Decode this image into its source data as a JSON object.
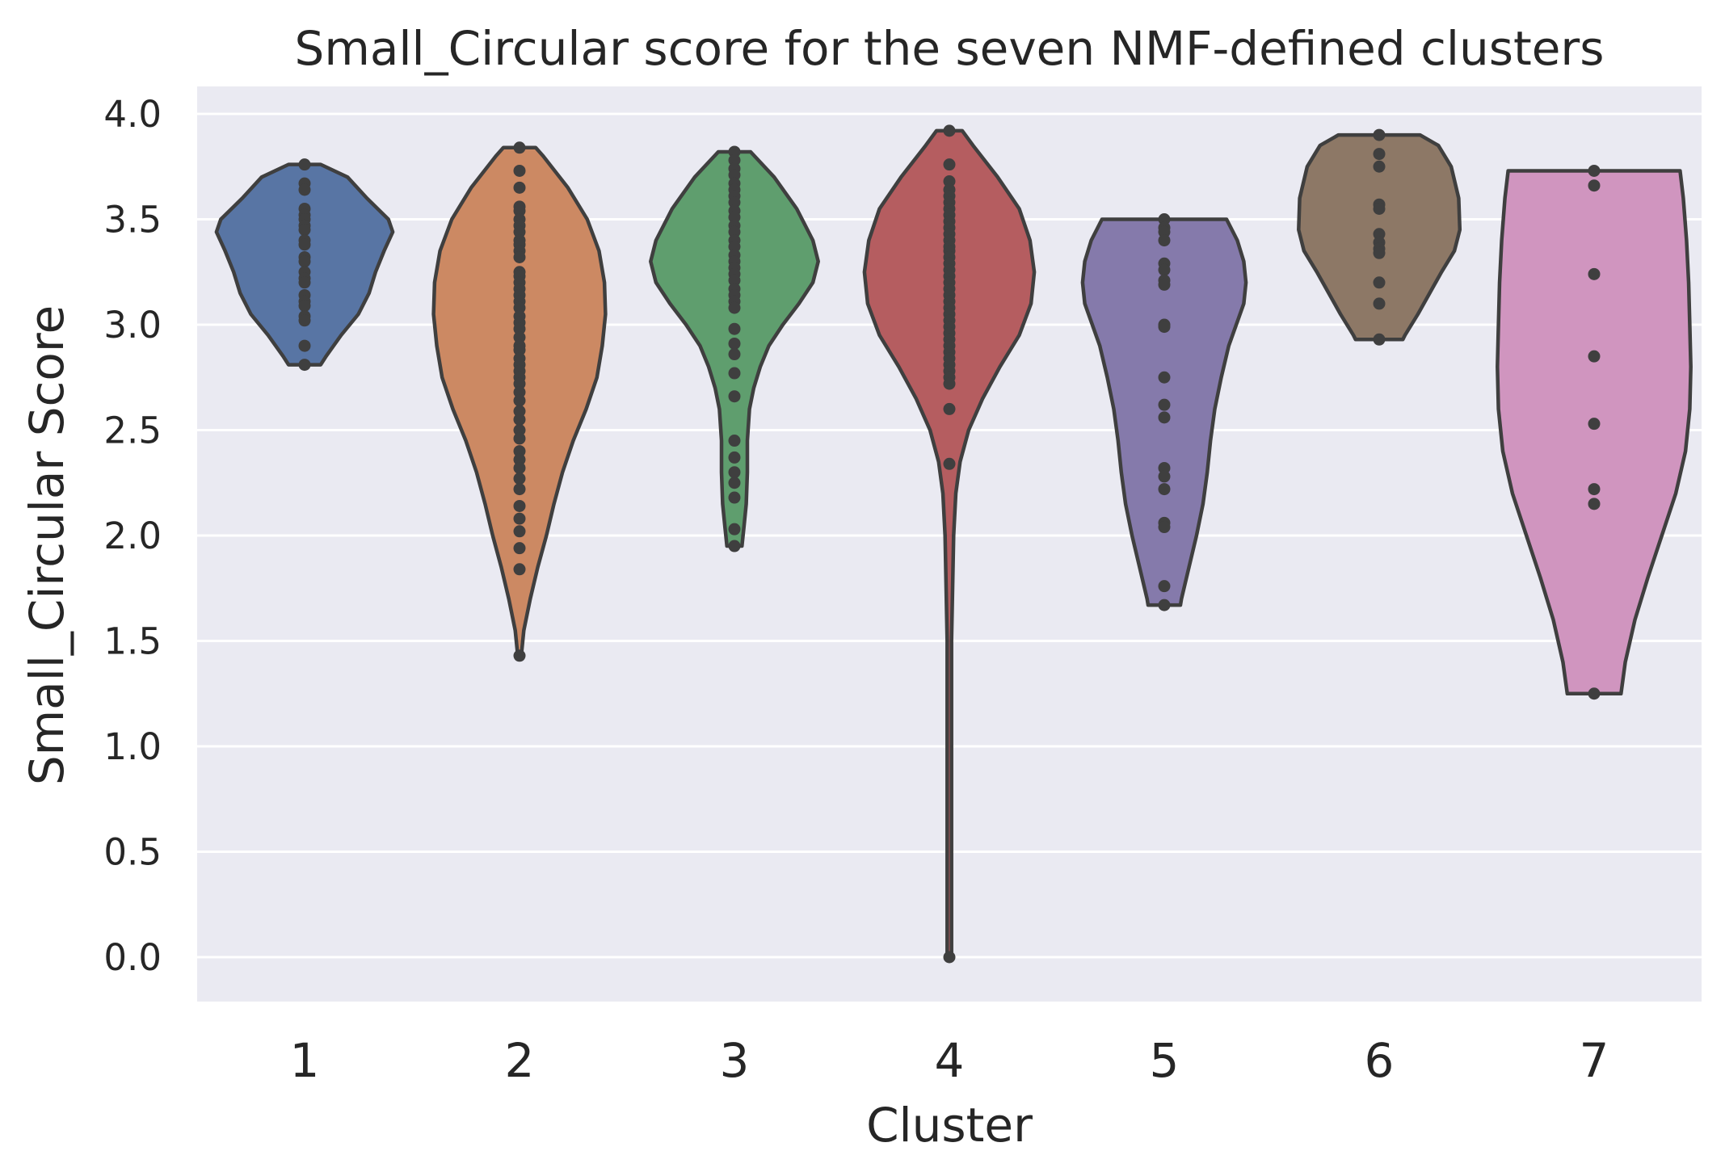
{
  "chart_data": {
    "type": "violin",
    "title": "Small_Circular score for the seven NMF-defined clusters",
    "xlabel": "Cluster",
    "ylabel": "Small_Circular Score",
    "categories": [
      "1",
      "2",
      "3",
      "4",
      "5",
      "6",
      "7"
    ],
    "ylim": [
      -0.22,
      4.15
    ],
    "yticks": [
      "0.0",
      "0.5",
      "1.0",
      "1.5",
      "2.0",
      "2.5",
      "3.0",
      "3.5",
      "4.0"
    ],
    "grid": true,
    "background": "#EAEAF2",
    "edge_color": "#3F3F3F",
    "series": [
      {
        "category": "1",
        "color": "#5875A4",
        "outline": [
          [
            3.76,
            0.15
          ],
          [
            3.7,
            0.4
          ],
          [
            3.6,
            0.58
          ],
          [
            3.5,
            0.78
          ],
          [
            3.44,
            0.82
          ],
          [
            3.35,
            0.74
          ],
          [
            3.25,
            0.66
          ],
          [
            3.15,
            0.6
          ],
          [
            3.05,
            0.5
          ],
          [
            2.95,
            0.34
          ],
          [
            2.85,
            0.2
          ],
          [
            2.81,
            0.15
          ]
        ],
        "points": [
          3.76,
          3.67,
          3.64,
          3.55,
          3.52,
          3.5,
          3.47,
          3.45,
          3.4,
          3.38,
          3.32,
          3.3,
          3.25,
          3.22,
          3.2,
          3.14,
          3.11,
          3.09,
          3.04,
          3.02,
          2.9,
          2.81
        ]
      },
      {
        "category": "2",
        "color": "#CC8963",
        "outline": [
          [
            3.84,
            0.15
          ],
          [
            3.8,
            0.22
          ],
          [
            3.65,
            0.45
          ],
          [
            3.5,
            0.63
          ],
          [
            3.35,
            0.74
          ],
          [
            3.2,
            0.79
          ],
          [
            3.05,
            0.8
          ],
          [
            2.9,
            0.77
          ],
          [
            2.75,
            0.72
          ],
          [
            2.6,
            0.62
          ],
          [
            2.45,
            0.5
          ],
          [
            2.3,
            0.4
          ],
          [
            2.15,
            0.32
          ],
          [
            2.0,
            0.25
          ],
          [
            1.85,
            0.17
          ],
          [
            1.7,
            0.1
          ],
          [
            1.55,
            0.04
          ],
          [
            1.45,
            0.02
          ],
          [
            1.43,
            0.02
          ]
        ],
        "points": [
          3.84,
          3.73,
          3.65,
          3.56,
          3.54,
          3.5,
          3.47,
          3.44,
          3.4,
          3.38,
          3.35,
          3.32,
          3.25,
          3.23,
          3.2,
          3.17,
          3.14,
          3.11,
          3.08,
          3.04,
          3.01,
          2.98,
          2.94,
          2.9,
          2.88,
          2.84,
          2.81,
          2.78,
          2.75,
          2.72,
          2.68,
          2.64,
          2.59,
          2.55,
          2.5,
          2.46,
          2.4,
          2.36,
          2.32,
          2.27,
          2.22,
          2.14,
          2.08,
          2.02,
          1.94,
          1.84,
          1.43
        ]
      },
      {
        "category": "3",
        "color": "#5F9E6E",
        "outline": [
          [
            3.82,
            0.15
          ],
          [
            3.7,
            0.37
          ],
          [
            3.55,
            0.58
          ],
          [
            3.4,
            0.73
          ],
          [
            3.3,
            0.78
          ],
          [
            3.2,
            0.73
          ],
          [
            3.1,
            0.6
          ],
          [
            3.0,
            0.45
          ],
          [
            2.9,
            0.32
          ],
          [
            2.8,
            0.24
          ],
          [
            2.7,
            0.18
          ],
          [
            2.6,
            0.14
          ],
          [
            2.45,
            0.12
          ],
          [
            2.3,
            0.12
          ],
          [
            2.15,
            0.11
          ],
          [
            2.05,
            0.09
          ],
          [
            1.95,
            0.07
          ]
        ],
        "points": [
          3.82,
          3.78,
          3.74,
          3.71,
          3.67,
          3.64,
          3.61,
          3.58,
          3.54,
          3.51,
          3.47,
          3.44,
          3.4,
          3.37,
          3.33,
          3.3,
          3.27,
          3.24,
          3.21,
          3.17,
          3.14,
          3.11,
          3.08,
          2.98,
          2.91,
          2.86,
          2.77,
          2.66,
          2.45,
          2.37,
          2.3,
          2.25,
          2.18,
          2.03,
          1.95
        ]
      },
      {
        "category": "4",
        "color": "#B55D60",
        "outline": [
          [
            3.92,
            0.12
          ],
          [
            3.85,
            0.22
          ],
          [
            3.7,
            0.45
          ],
          [
            3.55,
            0.65
          ],
          [
            3.4,
            0.75
          ],
          [
            3.25,
            0.79
          ],
          [
            3.1,
            0.76
          ],
          [
            2.95,
            0.65
          ],
          [
            2.8,
            0.47
          ],
          [
            2.65,
            0.31
          ],
          [
            2.5,
            0.18
          ],
          [
            2.35,
            0.1
          ],
          [
            2.2,
            0.06
          ],
          [
            2.0,
            0.04
          ],
          [
            1.5,
            0.02
          ],
          [
            1.0,
            0.02
          ],
          [
            0.5,
            0.02
          ],
          [
            0.1,
            0.02
          ],
          [
            0.0,
            0.02
          ]
        ],
        "points": [
          3.92,
          3.76,
          3.68,
          3.64,
          3.61,
          3.58,
          3.55,
          3.52,
          3.49,
          3.46,
          3.43,
          3.4,
          3.37,
          3.35,
          3.32,
          3.29,
          3.26,
          3.23,
          3.2,
          3.17,
          3.14,
          3.11,
          3.08,
          3.05,
          3.02,
          2.99,
          2.96,
          2.93,
          2.9,
          2.87,
          2.84,
          2.81,
          2.78,
          2.75,
          2.72,
          2.6,
          2.34,
          0.0
        ]
      },
      {
        "category": "5",
        "color": "#857AAB",
        "outline": [
          [
            3.5,
            0.58
          ],
          [
            3.4,
            0.68
          ],
          [
            3.3,
            0.74
          ],
          [
            3.2,
            0.76
          ],
          [
            3.1,
            0.74
          ],
          [
            3.0,
            0.67
          ],
          [
            2.9,
            0.6
          ],
          [
            2.75,
            0.53
          ],
          [
            2.6,
            0.47
          ],
          [
            2.45,
            0.43
          ],
          [
            2.3,
            0.4
          ],
          [
            2.15,
            0.36
          ],
          [
            2.0,
            0.3
          ],
          [
            1.85,
            0.23
          ],
          [
            1.7,
            0.16
          ],
          [
            1.67,
            0.15
          ]
        ],
        "points": [
          3.5,
          3.46,
          3.44,
          3.4,
          3.29,
          3.26,
          3.21,
          3.19,
          3.0,
          2.99,
          2.75,
          2.62,
          2.56,
          2.32,
          2.28,
          2.22,
          2.06,
          2.04,
          1.76,
          1.67
        ]
      },
      {
        "category": "6",
        "color": "#8D7866",
        "outline": [
          [
            3.9,
            0.38
          ],
          [
            3.85,
            0.55
          ],
          [
            3.75,
            0.67
          ],
          [
            3.6,
            0.74
          ],
          [
            3.45,
            0.75
          ],
          [
            3.35,
            0.7
          ],
          [
            3.25,
            0.58
          ],
          [
            3.15,
            0.47
          ],
          [
            3.05,
            0.36
          ],
          [
            2.95,
            0.24
          ],
          [
            2.93,
            0.22
          ]
        ],
        "points": [
          3.9,
          3.81,
          3.75,
          3.57,
          3.55,
          3.43,
          3.39,
          3.36,
          3.34,
          3.2,
          3.1,
          2.93
        ]
      },
      {
        "category": "7",
        "color": "#D095BF",
        "outline": [
          [
            3.73,
            0.8
          ],
          [
            3.6,
            0.83
          ],
          [
            3.4,
            0.86
          ],
          [
            3.2,
            0.88
          ],
          [
            3.0,
            0.89
          ],
          [
            2.8,
            0.9
          ],
          [
            2.6,
            0.89
          ],
          [
            2.4,
            0.85
          ],
          [
            2.2,
            0.76
          ],
          [
            2.0,
            0.63
          ],
          [
            1.8,
            0.5
          ],
          [
            1.6,
            0.38
          ],
          [
            1.4,
            0.29
          ],
          [
            1.25,
            0.25
          ]
        ],
        "points": [
          3.73,
          3.66,
          3.24,
          2.85,
          2.53,
          2.22,
          2.15,
          1.25
        ]
      }
    ]
  }
}
